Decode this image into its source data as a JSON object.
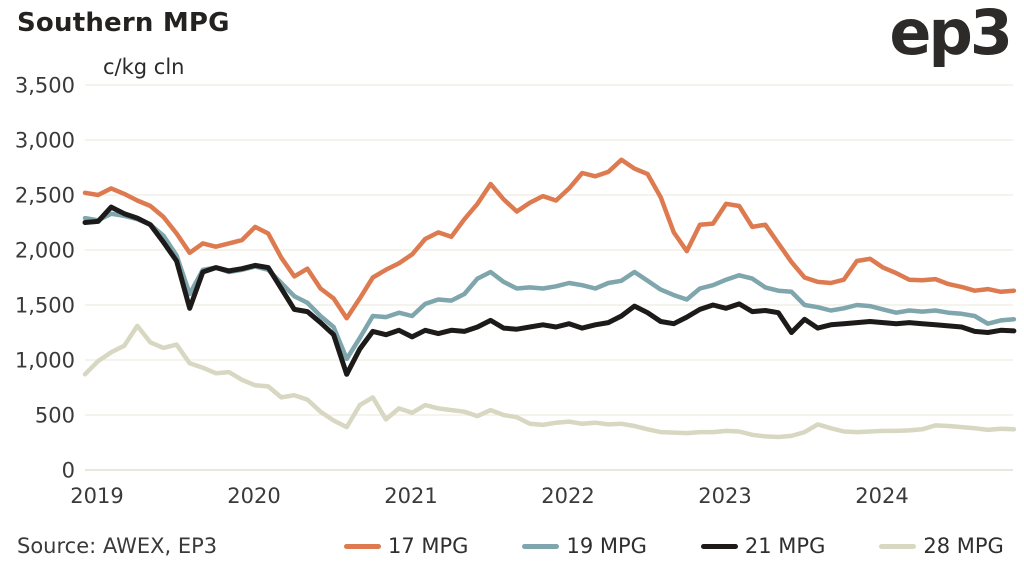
{
  "header": {
    "title": "Southern MPG",
    "subtitle": "c/kg cln",
    "logo_text": "ep3"
  },
  "footer": {
    "source": "Source: AWEX, EP3"
  },
  "colors": {
    "series_17": "#dd7a4f",
    "series_19": "#7ea6ac",
    "series_21": "#1d1b1a",
    "series_28": "#d8d7c2",
    "gridline": "#edece0",
    "zero_line": "#e0dfd0",
    "text": "#3a3a3a",
    "title_text": "#242220"
  },
  "chart_data": {
    "type": "line",
    "title": "Southern MPG",
    "ylabel": "c/kg cln",
    "xlabel": "",
    "ylim": [
      0,
      3500
    ],
    "ytick_step": 500,
    "ytick_values": [
      0,
      500,
      1000,
      1500,
      2000,
      2500,
      3000,
      3500
    ],
    "ytick_labels": [
      "0",
      "500",
      "1,000",
      "1,500",
      "2,000",
      "2,500",
      "3,000",
      "3,500"
    ],
    "xtick_labels": [
      "2019",
      "2020",
      "2021",
      "2022",
      "2023",
      "2024"
    ],
    "grid": "horizontal",
    "legend_position": "bottom",
    "x_start_year": 2019,
    "x_points_per_year": 12,
    "x_end_year_approx": 2024.92,
    "series": [
      {
        "name": "17 MPG",
        "color": "#dd7a4f",
        "stroke_width": 4.5,
        "values": [
          2520,
          2500,
          2560,
          2510,
          2450,
          2400,
          2300,
          2150,
          1975,
          2060,
          2030,
          2060,
          2090,
          2210,
          2150,
          1930,
          1760,
          1830,
          1650,
          1560,
          1380,
          1560,
          1750,
          1820,
          1880,
          1960,
          2100,
          2160,
          2120,
          2280,
          2420,
          2600,
          2460,
          2350,
          2430,
          2490,
          2450,
          2560,
          2700,
          2670,
          2710,
          2820,
          2740,
          2690,
          2480,
          2160,
          1990,
          2230,
          2240,
          2420,
          2400,
          2210,
          2230,
          2060,
          1890,
          1750,
          1710,
          1700,
          1730,
          1900,
          1920,
          1840,
          1790,
          1730,
          1725,
          1735,
          1690,
          1665,
          1630,
          1645,
          1620,
          1630
        ]
      },
      {
        "name": "19 MPG",
        "color": "#7ea6ac",
        "stroke_width": 4.5,
        "values": [
          2290,
          2270,
          2330,
          2310,
          2280,
          2230,
          2130,
          1950,
          1600,
          1820,
          1840,
          1800,
          1820,
          1850,
          1820,
          1700,
          1580,
          1520,
          1400,
          1300,
          1010,
          1200,
          1400,
          1390,
          1430,
          1400,
          1510,
          1550,
          1540,
          1600,
          1740,
          1800,
          1710,
          1650,
          1660,
          1650,
          1670,
          1700,
          1680,
          1650,
          1700,
          1720,
          1800,
          1720,
          1640,
          1590,
          1550,
          1650,
          1680,
          1730,
          1770,
          1740,
          1660,
          1630,
          1620,
          1500,
          1480,
          1450,
          1470,
          1500,
          1490,
          1460,
          1430,
          1450,
          1440,
          1450,
          1430,
          1420,
          1400,
          1330,
          1360,
          1370
        ]
      },
      {
        "name": "21 MPG",
        "color": "#1d1b1a",
        "stroke_width": 5,
        "values": [
          2250,
          2260,
          2390,
          2330,
          2290,
          2230,
          2070,
          1900,
          1470,
          1800,
          1840,
          1810,
          1830,
          1860,
          1840,
          1650,
          1460,
          1440,
          1340,
          1230,
          870,
          1100,
          1260,
          1230,
          1270,
          1210,
          1270,
          1240,
          1270,
          1260,
          1300,
          1360,
          1290,
          1280,
          1300,
          1320,
          1300,
          1330,
          1290,
          1320,
          1340,
          1400,
          1490,
          1430,
          1350,
          1330,
          1390,
          1460,
          1500,
          1470,
          1510,
          1440,
          1450,
          1430,
          1250,
          1370,
          1290,
          1320,
          1330,
          1340,
          1350,
          1340,
          1330,
          1340,
          1330,
          1320,
          1310,
          1300,
          1260,
          1250,
          1270,
          1265
        ]
      },
      {
        "name": "28 MPG",
        "color": "#d8d7c2",
        "stroke_width": 4.5,
        "values": [
          870,
          990,
          1070,
          1130,
          1310,
          1160,
          1110,
          1140,
          970,
          930,
          880,
          890,
          820,
          770,
          760,
          660,
          680,
          640,
          530,
          450,
          390,
          590,
          660,
          460,
          560,
          520,
          590,
          560,
          545,
          530,
          490,
          545,
          500,
          480,
          420,
          410,
          430,
          440,
          420,
          430,
          415,
          420,
          400,
          370,
          345,
          340,
          335,
          345,
          345,
          355,
          350,
          320,
          305,
          300,
          310,
          345,
          415,
          380,
          350,
          345,
          350,
          355,
          355,
          360,
          370,
          405,
          400,
          390,
          380,
          365,
          375,
          370
        ]
      }
    ]
  }
}
